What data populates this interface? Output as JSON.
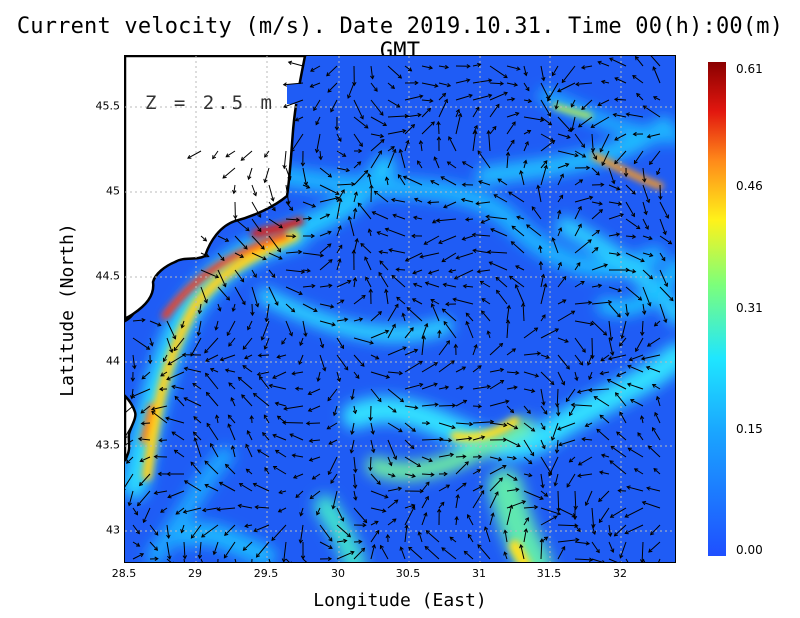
{
  "title": "Current velocity (m/s). Date 2019.10.31. Time 00(h):00(m) GMT",
  "depth_label": "Z = 2.5 m",
  "x_axis": {
    "label": "Longitude (East)",
    "ticks": [
      "28.5",
      "29",
      "29.5",
      "30",
      "30.5",
      "31",
      "31.5",
      "32"
    ]
  },
  "y_axis": {
    "label": "Latitude (North)",
    "ticks": [
      "45.5",
      "45",
      "44.5",
      "44",
      "43.5",
      "43"
    ]
  },
  "colorbar": {
    "ticks": [
      "0.61",
      "0.46",
      "0.31",
      "0.15",
      "0.00"
    ],
    "colors": [
      "#1f4fff",
      "#1aa5ff",
      "#1fe6ff",
      "#7dff7a",
      "#fff21a",
      "#ff8a1a",
      "#e2170f",
      "#8a0000"
    ]
  },
  "map": {
    "land_color": "#ffffff",
    "coast_color": "#000000",
    "water_base_color": "#1f5cf5",
    "arrow_color": "#000000",
    "grid": "dotted"
  }
}
